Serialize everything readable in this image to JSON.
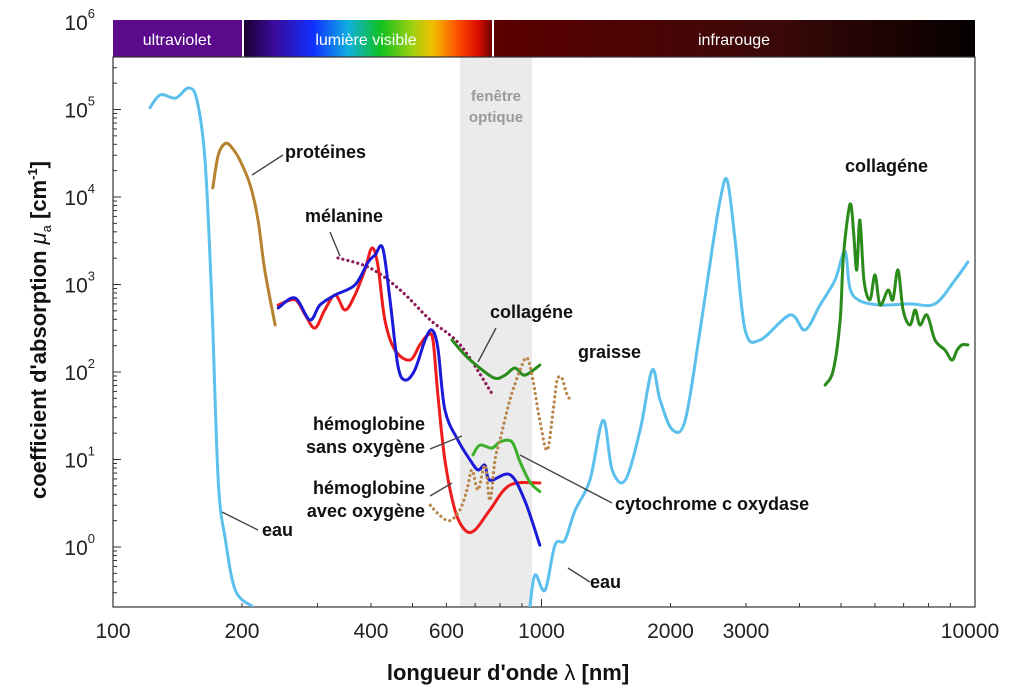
{
  "chart_data": {
    "type": "line",
    "title": "",
    "xlabel": "longueur d'onde λ [nm]",
    "ylabel": "coefficient d'absorption μa [cm-1]",
    "xlabel_parts": {
      "text": "longueur d'onde ",
      "symbol": "λ",
      "unit": " [nm]"
    },
    "ylabel_parts": {
      "text": "coefficient d'absorption ",
      "symbol": "μ",
      "sub": "a",
      "unit_open": " [cm",
      "unit_sup": "-1",
      "unit_close": "]"
    },
    "xscale": "log",
    "yscale": "log",
    "xlim": [
      100,
      10000
    ],
    "ylim": [
      0.2,
      1000000
    ],
    "x_ticks": [
      {
        "value": 100,
        "label": "100"
      },
      {
        "value": 200,
        "label": "200"
      },
      {
        "value": 400,
        "label": "400"
      },
      {
        "value": 600,
        "label": "600"
      },
      {
        "value": 1000,
        "label": "1000"
      },
      {
        "value": 2000,
        "label": "2000"
      },
      {
        "value": 3000,
        "label": "3000"
      },
      {
        "value": 10000,
        "label": "10000"
      }
    ],
    "y_ticks": [
      {
        "value": 1,
        "base": "10",
        "exp": "0"
      },
      {
        "value": 10,
        "base": "10",
        "exp": "1"
      },
      {
        "value": 100,
        "base": "10",
        "exp": "2"
      },
      {
        "value": 1000,
        "base": "10",
        "exp": "3"
      },
      {
        "value": 10000,
        "base": "10",
        "exp": "4"
      },
      {
        "value": 100000,
        "base": "10",
        "exp": "5"
      },
      {
        "value": 1000000,
        "base": "10",
        "exp": "6"
      }
    ],
    "bands": [
      {
        "label": "ultraviolet",
        "range": [
          100,
          200
        ]
      },
      {
        "label": "lumière visible",
        "range": [
          200,
          760
        ]
      },
      {
        "label": "infrarouge",
        "range": [
          760,
          10000
        ]
      }
    ],
    "optical_window": {
      "label_line1": "fenêtre",
      "label_line2": "optique",
      "range": [
        650,
        950
      ]
    },
    "series": [
      {
        "name": "eau (UV)",
        "color": "#5bc0eb",
        "style": "solid",
        "x": [
          122,
          129,
          140,
          150,
          157,
          164,
          170,
          176,
          183,
          193,
          211
        ],
        "y": [
          105000,
          147000,
          135000,
          176000,
          128000,
          26000,
          670,
          5.8,
          1.2,
          0.32,
          0.21
        ]
      },
      {
        "name": "eau (IR)",
        "color": "#5bc0eb",
        "style": "solid",
        "x": [
          940,
          966,
          1019,
          1075,
          1134,
          1197,
          1297,
          1392,
          1462,
          1568,
          1700,
          1812,
          1891,
          2018,
          2164,
          2345,
          2500,
          2612,
          2712,
          2830,
          2987,
          3237,
          3802,
          4120,
          4467,
          4842,
          5105,
          5248,
          5538,
          6166,
          7244,
          8279,
          9226,
          9886
        ],
        "y": [
          0.21,
          0.48,
          0.32,
          1.05,
          1.2,
          2.6,
          5.8,
          28,
          7.6,
          5.8,
          22,
          105,
          48,
          22,
          28,
          302,
          2480,
          9240,
          15600,
          3230,
          302,
          232,
          448,
          302,
          583,
          1125,
          2400,
          900,
          650,
          583,
          600,
          600,
          1125,
          1806
        ]
      },
      {
        "name": "protéines",
        "color": "#b5832f",
        "style": "solid",
        "x": [
          171,
          176,
          183,
          190,
          198,
          209,
          218,
          226,
          239
        ],
        "y": [
          12700,
          30000,
          41000,
          36000,
          26000,
          13700,
          5460,
          1465,
          344
        ]
      },
      {
        "name": "mélanine",
        "color": "#8b1a5a",
        "style": "dotted",
        "x": [
          335,
          398,
          468,
          550,
          646,
          766
        ],
        "y": [
          2010,
          1545,
          865,
          393,
          204,
          57
        ]
      },
      {
        "name": "hémoglobine avec oxygène",
        "color": "#ee1c1c",
        "style": "solid",
        "x": [
          243,
          266,
          281,
          296,
          312,
          330,
          348,
          367,
          387,
          402,
          415,
          431,
          455,
          493,
          520,
          543,
          558,
          573,
          595,
          628,
          663,
          699,
          758,
          844,
          991
        ],
        "y": [
          583,
          670,
          448,
          318,
          511,
          759,
          511,
          759,
          1465,
          2612,
          1670,
          393,
          178,
          137,
          204,
          265,
          232,
          55,
          9.9,
          2.65,
          1.56,
          1.56,
          2.65,
          5.1,
          5.4
        ]
      },
      {
        "name": "hémoglobine sans oxygène",
        "color": "#1a1ad8",
        "style": "solid",
        "x": [
          243,
          266,
          288,
          304,
          330,
          367,
          394,
          409,
          426,
          443,
          462,
          480,
          506,
          535,
          555,
          573,
          595,
          638,
          681,
          711,
          738,
          758,
          844,
          914,
          991
        ],
        "y": [
          539,
          701,
          393,
          583,
          759,
          987,
          1806,
          2173,
          2612,
          670,
          120,
          81,
          105,
          232,
          302,
          188,
          37,
          16.7,
          9.9,
          7.6,
          8.6,
          5.8,
          6.7,
          3.4,
          1.05
        ]
      },
      {
        "name": "cytochrome c oxydase",
        "color": "#3cb02a",
        "style": "solid",
        "x": [
          692,
          718,
          766,
          800,
          853,
          891,
          940,
          991
        ],
        "y": [
          11.3,
          14.6,
          13.5,
          15.9,
          15.9,
          9.4,
          5.5,
          4.3
        ]
      },
      {
        "name": "collagéne (visible)",
        "color": "#2a8a1a",
        "style": "solid",
        "x": [
          618,
          663,
          718,
          778,
          822,
          867,
          914,
          991
        ],
        "y": [
          232,
          156,
          111,
          85,
          92,
          111,
          92,
          120
        ]
      },
      {
        "name": "collagéne (IR)",
        "color": "#2a8a1a",
        "style": "solid",
        "x": [
          4592,
          4797,
          4977,
          5058,
          5191,
          5277,
          5356,
          5442,
          5534,
          5656,
          5842,
          6003,
          6166,
          6437,
          6607,
          6792,
          6980,
          7244,
          7447,
          7643,
          7940,
          8286,
          8742,
          9080,
          9330,
          9576,
          9885
        ],
        "y": [
          71,
          105,
          393,
          1906,
          6220,
          8110,
          3680,
          1465,
          5460,
          1125,
          670,
          1285,
          583,
          865,
          670,
          1465,
          511,
          344,
          511,
          344,
          448,
          232,
          178,
          137,
          178,
          204,
          204
        ]
      },
      {
        "name": "graisse",
        "color": "#b8864a",
        "style": "dotted",
        "x": [
          550,
          579,
          611,
          645,
          670,
          688,
          711,
          738,
          758,
          779,
          800,
          844,
          891,
          925,
          955,
          991,
          1031,
          1065,
          1088,
          1116,
          1141,
          1166
        ],
        "y": [
          3.0,
          2.3,
          2.0,
          2.65,
          4.5,
          7.6,
          4.5,
          8.6,
          3.4,
          9.9,
          16.7,
          48,
          105,
          145,
          81,
          28,
          12.8,
          37,
          81,
          85,
          59,
          48
        ]
      }
    ],
    "annotations": [
      {
        "id": "proteines",
        "text": "protéines"
      },
      {
        "id": "melanine",
        "text": "mélanine"
      },
      {
        "id": "collagene_vis",
        "text": "collagéne"
      },
      {
        "id": "collagene_ir",
        "text": "collagéne"
      },
      {
        "id": "graisse",
        "text": "graisse"
      },
      {
        "id": "hb_deoxy",
        "line1": "hémoglobine",
        "line2": "sans oxygène"
      },
      {
        "id": "hb_oxy",
        "line1": "hémoglobine",
        "line2": "avec oxygène"
      },
      {
        "id": "cytochrome",
        "text": "cytochrome c oxydase"
      },
      {
        "id": "eau_uv",
        "text": "eau"
      },
      {
        "id": "eau_ir",
        "text": "eau"
      }
    ]
  }
}
